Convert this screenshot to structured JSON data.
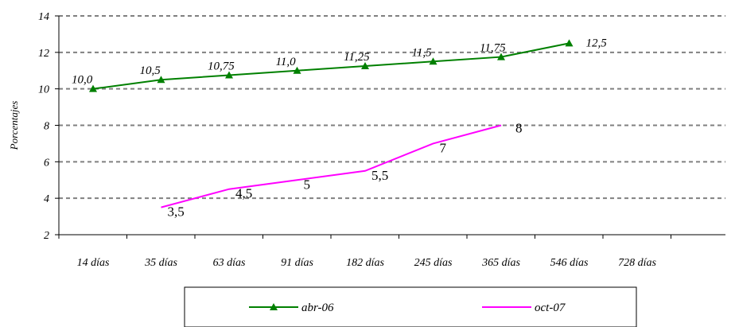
{
  "chart_data": {
    "type": "line",
    "title": "",
    "xlabel": "",
    "ylabel": "Porcentajes",
    "categories": [
      "14 días",
      "35 días",
      "63 días",
      "91 días",
      "182 días",
      "245 días",
      "365 días",
      "546 días",
      "728 días"
    ],
    "ylim": [
      2,
      14
    ],
    "yticks": [
      2,
      4,
      6,
      8,
      10,
      12,
      14
    ],
    "grid": true,
    "legend_position": "bottom",
    "series": [
      {
        "name": "abr-06",
        "color": "#008000",
        "marker": "triangle",
        "points": [
          {
            "x": 0,
            "y": 10.0,
            "label": "10,0"
          },
          {
            "x": 1,
            "y": 10.5,
            "label": "10,5"
          },
          {
            "x": 2,
            "y": 10.75,
            "label": "10,75"
          },
          {
            "x": 3,
            "y": 11.0,
            "label": "11,0"
          },
          {
            "x": 4,
            "y": 11.25,
            "label": "11,25"
          },
          {
            "x": 5,
            "y": 11.5,
            "label": "11,5"
          },
          {
            "x": 6,
            "y": 11.75,
            "label": "11,75"
          },
          {
            "x": 7,
            "y": 12.5,
            "label": "12,5"
          }
        ]
      },
      {
        "name": "oct-07",
        "color": "#ff00ff",
        "marker": "none",
        "points": [
          {
            "x": 1,
            "y": 3.5,
            "label": "3,5"
          },
          {
            "x": 2,
            "y": 4.5,
            "label": "4,5"
          },
          {
            "x": 3,
            "y": 5.0,
            "label": "5"
          },
          {
            "x": 4,
            "y": 5.5,
            "label": "5,5"
          },
          {
            "x": 5,
            "y": 7.0,
            "label": "7"
          },
          {
            "x": 6,
            "y": 8.0,
            "label": "8"
          }
        ]
      }
    ]
  }
}
